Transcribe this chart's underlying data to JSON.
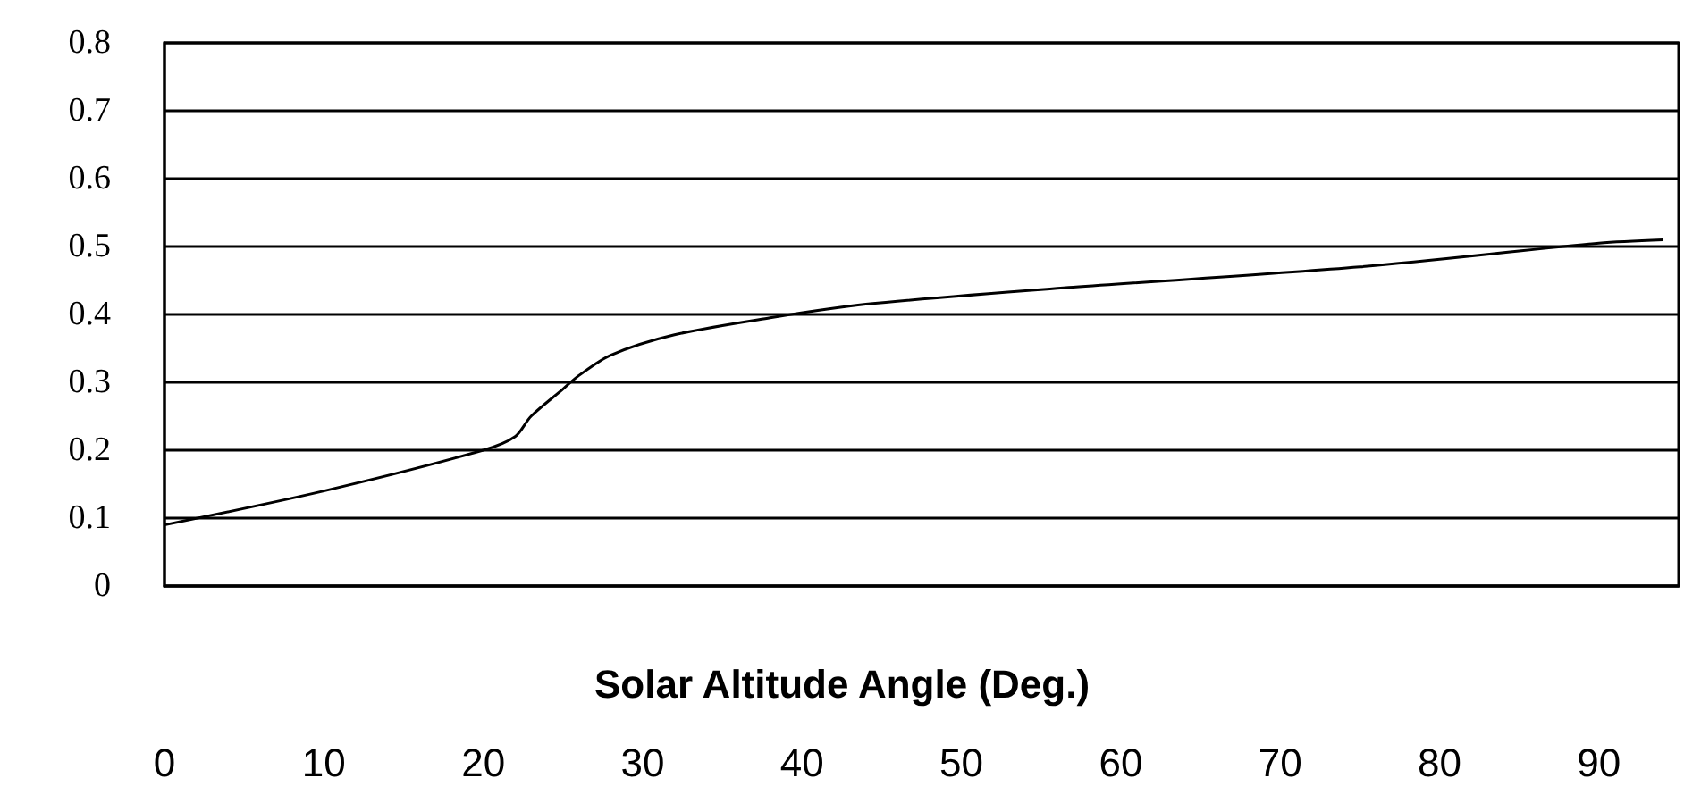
{
  "chart_data": {
    "type": "line",
    "xlabel": "Solar Altitude Angle (Deg.)",
    "x": [
      0,
      10,
      20,
      22,
      23,
      25,
      26,
      28,
      32,
      38,
      44,
      57,
      75,
      90,
      94
    ],
    "series": [
      {
        "color": "#000000",
        "values": [
          0.09,
          0.14,
          0.2,
          0.22,
          0.25,
          0.29,
          0.31,
          0.34,
          0.37,
          0.395,
          0.415,
          0.44,
          0.47,
          0.505,
          0.51
        ]
      }
    ],
    "xlim": [
      0,
      95
    ],
    "xticks": [
      0,
      10,
      20,
      30,
      40,
      50,
      60,
      70,
      80,
      90
    ],
    "ylim": [
      0,
      0.8
    ],
    "yticks": [
      0,
      0.1,
      0.2,
      0.3,
      0.4,
      0.5,
      0.6,
      0.7,
      0.8
    ],
    "grid": "y",
    "marker": "none",
    "line_style": "solid"
  }
}
